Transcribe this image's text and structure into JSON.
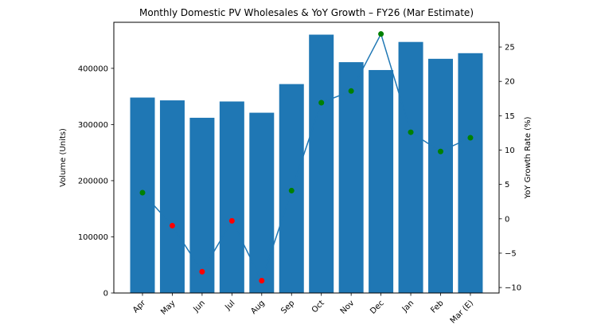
{
  "figure": {
    "background_color": "#ffffff",
    "plot_border_color": "#000000"
  },
  "chart_data": {
    "type": "bar",
    "overlay": "line",
    "title": "Monthly Domestic PV Wholesales & YoY Growth – FY26 (Mar Estimate)",
    "xlabel": "",
    "grid": false,
    "legend_position": "none",
    "categories": [
      "Apr",
      "May",
      "Jun",
      "Jul",
      "Aug",
      "Sep",
      "Oct",
      "Nov",
      "Dec",
      "Jan",
      "Feb",
      "Mar (E)"
    ],
    "series": [
      {
        "name": "Volume (Units)",
        "type": "bar",
        "axis": "left",
        "color": "#1f77b4",
        "values": [
          348000,
          343000,
          312000,
          341000,
          321000,
          372000,
          460000,
          411000,
          397000,
          447000,
          417000,
          427000
        ]
      },
      {
        "name": "YoY Growth Rate (%)",
        "type": "line",
        "axis": "right",
        "line_color": "#1f77b4",
        "marker_positive_color": "#008000",
        "marker_negative_color": "#ff0000",
        "values": [
          3.8,
          -1.0,
          -7.7,
          -0.3,
          -9.0,
          4.1,
          16.9,
          18.6,
          26.9,
          12.6,
          9.8,
          11.8
        ]
      }
    ],
    "left_axis": {
      "label": "Volume (Units)",
      "ticks": [
        0,
        100000,
        200000,
        300000,
        400000
      ],
      "range": [
        0,
        482000
      ]
    },
    "right_axis": {
      "label": "YoY Growth Rate (%)",
      "ticks": [
        -10,
        -5,
        0,
        5,
        10,
        15,
        20,
        25
      ],
      "range": [
        -10.8,
        28.6
      ]
    }
  }
}
